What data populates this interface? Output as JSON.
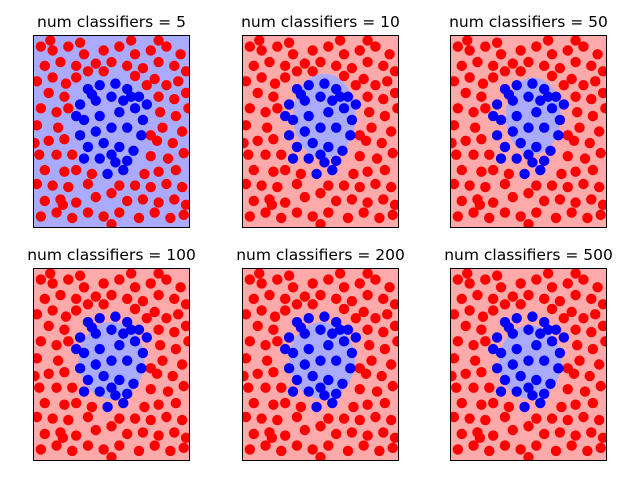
{
  "chart_data": [
    {
      "type": "scatter",
      "title": "num classifiers = 5",
      "xlim": [
        -1,
        1
      ],
      "ylim": [
        -1.25,
        1.25
      ],
      "ticks_visible": false,
      "background_color": "#aaaaff",
      "region_color": "#ffaaaa",
      "region": {
        "shape": "none"
      }
    },
    {
      "type": "scatter",
      "title": "num classifiers = 10",
      "xlim": [
        -1,
        1
      ],
      "ylim": [
        -1.25,
        1.25
      ],
      "ticks_visible": false,
      "background_color": "#ffaaaa",
      "region_color": "#aaaaff",
      "region": {
        "shape": "blob",
        "cx": 0.05,
        "cy": 0.2,
        "rx": 0.4,
        "ry": 0.55
      }
    },
    {
      "type": "scatter",
      "title": "num classifiers = 50",
      "xlim": [
        -1,
        1
      ],
      "ylim": [
        -1.25,
        1.25
      ],
      "ticks_visible": false,
      "background_color": "#ffaaaa",
      "region_color": "#aaaaff",
      "region": {
        "shape": "blob",
        "cx": 0.06,
        "cy": 0.2,
        "rx": 0.35,
        "ry": 0.5
      }
    },
    {
      "type": "scatter",
      "title": "num classifiers = 100",
      "xlim": [
        -1,
        1
      ],
      "ylim": [
        -1.25,
        1.25
      ],
      "ticks_visible": false,
      "background_color": "#ffaaaa",
      "region_color": "#aaaaff",
      "region": {
        "shape": "blob",
        "cx": 0.0,
        "cy": 0.05,
        "rx": 0.42,
        "ry": 0.5
      }
    },
    {
      "type": "scatter",
      "title": "num classifiers = 200",
      "xlim": [
        -1,
        1
      ],
      "ylim": [
        -1.25,
        1.25
      ],
      "ticks_visible": false,
      "background_color": "#ffaaaa",
      "region_color": "#aaaaff",
      "region": {
        "shape": "blob",
        "cx": 0.02,
        "cy": 0.05,
        "rx": 0.42,
        "ry": 0.5
      }
    },
    {
      "type": "scatter",
      "title": "num classifiers = 500",
      "xlim": [
        -1,
        1
      ],
      "ylim": [
        -1.25,
        1.25
      ],
      "ticks_visible": false,
      "background_color": "#ffaaaa",
      "region_color": "#aaaaff",
      "region": {
        "shape": "blob",
        "cx": 0.02,
        "cy": 0.03,
        "rx": 0.4,
        "ry": 0.48
      }
    }
  ],
  "points": {
    "colors": {
      "outer": "#ff0000",
      "inner": "#0000ff"
    },
    "inner": [
      [
        -0.3,
        0.55
      ],
      [
        -0.15,
        0.6
      ],
      [
        0.05,
        0.62
      ],
      [
        0.2,
        0.55
      ],
      [
        0.35,
        0.45
      ],
      [
        -0.4,
        0.35
      ],
      [
        -0.2,
        0.4
      ],
      [
        0.0,
        0.45
      ],
      [
        0.15,
        0.4
      ],
      [
        0.3,
        0.3
      ],
      [
        -0.35,
        0.15
      ],
      [
        -0.15,
        0.2
      ],
      [
        0.1,
        0.25
      ],
      [
        0.4,
        0.15
      ],
      [
        -0.4,
        -0.05
      ],
      [
        -0.2,
        0.0
      ],
      [
        0.0,
        0.05
      ],
      [
        0.2,
        0.05
      ],
      [
        0.38,
        -0.05
      ],
      [
        -0.3,
        -0.2
      ],
      [
        -0.1,
        -0.15
      ],
      [
        0.1,
        -0.2
      ],
      [
        0.28,
        -0.25
      ],
      [
        -0.15,
        -0.35
      ],
      [
        0.05,
        -0.4
      ],
      [
        0.2,
        -0.38
      ],
      [
        -0.05,
        -0.55
      ],
      [
        0.15,
        -0.5
      ],
      [
        -0.25,
        0.48
      ],
      [
        0.25,
        0.45
      ],
      [
        0.45,
        0.35
      ],
      [
        -0.45,
        0.2
      ],
      [
        0.0,
        -0.3
      ],
      [
        -0.35,
        -0.35
      ]
    ],
    "outer": [
      [
        -0.9,
        1.1
      ],
      [
        -0.75,
        1.05
      ],
      [
        -0.55,
        1.1
      ],
      [
        -0.35,
        1.0
      ],
      [
        -0.1,
        1.05
      ],
      [
        0.1,
        1.1
      ],
      [
        0.3,
        1.0
      ],
      [
        0.5,
        1.05
      ],
      [
        0.7,
        1.1
      ],
      [
        0.88,
        1.0
      ],
      [
        -0.85,
        0.85
      ],
      [
        -0.65,
        0.9
      ],
      [
        -0.45,
        0.85
      ],
      [
        -0.2,
        0.88
      ],
      [
        0.0,
        0.9
      ],
      [
        0.2,
        0.85
      ],
      [
        0.4,
        0.82
      ],
      [
        0.6,
        0.9
      ],
      [
        0.8,
        0.85
      ],
      [
        0.95,
        0.78
      ],
      [
        -0.95,
        0.65
      ],
      [
        -0.75,
        0.7
      ],
      [
        -0.58,
        0.62
      ],
      [
        -0.45,
        0.7
      ],
      [
        0.55,
        0.68
      ],
      [
        0.7,
        0.6
      ],
      [
        0.85,
        0.65
      ],
      [
        -0.8,
        0.5
      ],
      [
        -0.6,
        0.45
      ],
      [
        0.6,
        0.45
      ],
      [
        0.8,
        0.42
      ],
      [
        0.95,
        0.5
      ],
      [
        -0.9,
        0.3
      ],
      [
        -0.7,
        0.25
      ],
      [
        0.62,
        0.25
      ],
      [
        0.82,
        0.2
      ],
      [
        -0.95,
        0.08
      ],
      [
        -0.68,
        0.05
      ],
      [
        0.65,
        0.05
      ],
      [
        0.9,
        0.0
      ],
      [
        -0.8,
        -0.12
      ],
      [
        -0.6,
        -0.1
      ],
      [
        0.58,
        -0.12
      ],
      [
        0.78,
        -0.15
      ],
      [
        -0.92,
        -0.3
      ],
      [
        -0.7,
        -0.3
      ],
      [
        0.5,
        -0.32
      ],
      [
        0.72,
        -0.35
      ],
      [
        0.92,
        -0.28
      ],
      [
        -0.85,
        -0.5
      ],
      [
        -0.6,
        -0.52
      ],
      [
        -0.45,
        -0.5
      ],
      [
        0.42,
        -0.55
      ],
      [
        0.6,
        -0.52
      ],
      [
        0.82,
        -0.5
      ],
      [
        -0.95,
        -0.68
      ],
      [
        -0.75,
        -0.7
      ],
      [
        -0.55,
        -0.72
      ],
      [
        -0.3,
        -0.68
      ],
      [
        0.3,
        -0.7
      ],
      [
        0.5,
        -0.72
      ],
      [
        0.7,
        -0.68
      ],
      [
        0.9,
        -0.72
      ],
      [
        -0.85,
        -0.9
      ],
      [
        -0.65,
        -0.88
      ],
      [
        -0.45,
        -0.92
      ],
      [
        -0.2,
        -0.85
      ],
      [
        0.0,
        -0.8
      ],
      [
        0.2,
        -0.9
      ],
      [
        0.4,
        -0.88
      ],
      [
        0.6,
        -0.92
      ],
      [
        0.8,
        -0.88
      ],
      [
        0.95,
        -0.95
      ],
      [
        -0.9,
        -1.1
      ],
      [
        -0.7,
        -1.05
      ],
      [
        -0.5,
        -1.12
      ],
      [
        -0.3,
        -1.05
      ],
      [
        -0.1,
        -1.1
      ],
      [
        0.1,
        -1.05
      ],
      [
        0.35,
        -1.12
      ],
      [
        0.55,
        -1.05
      ],
      [
        0.75,
        -1.12
      ],
      [
        0.92,
        -1.08
      ],
      [
        -0.3,
        0.78
      ],
      [
        0.3,
        0.72
      ],
      [
        -0.55,
        0.3
      ],
      [
        0.5,
        -0.05
      ],
      [
        -0.5,
        -0.3
      ],
      [
        0.1,
        -0.7
      ],
      [
        -0.1,
        0.78
      ],
      [
        -0.25,
        -0.55
      ],
      [
        0.45,
        0.6
      ],
      [
        -0.78,
        1.18
      ],
      [
        0.6,
        1.18
      ],
      [
        0.0,
        -1.2
      ],
      [
        -0.98,
        -0.15
      ],
      [
        0.98,
        0.3
      ],
      [
        -0.4,
        1.15
      ],
      [
        0.25,
        1.18
      ],
      [
        -0.62,
        -0.95
      ]
    ]
  }
}
